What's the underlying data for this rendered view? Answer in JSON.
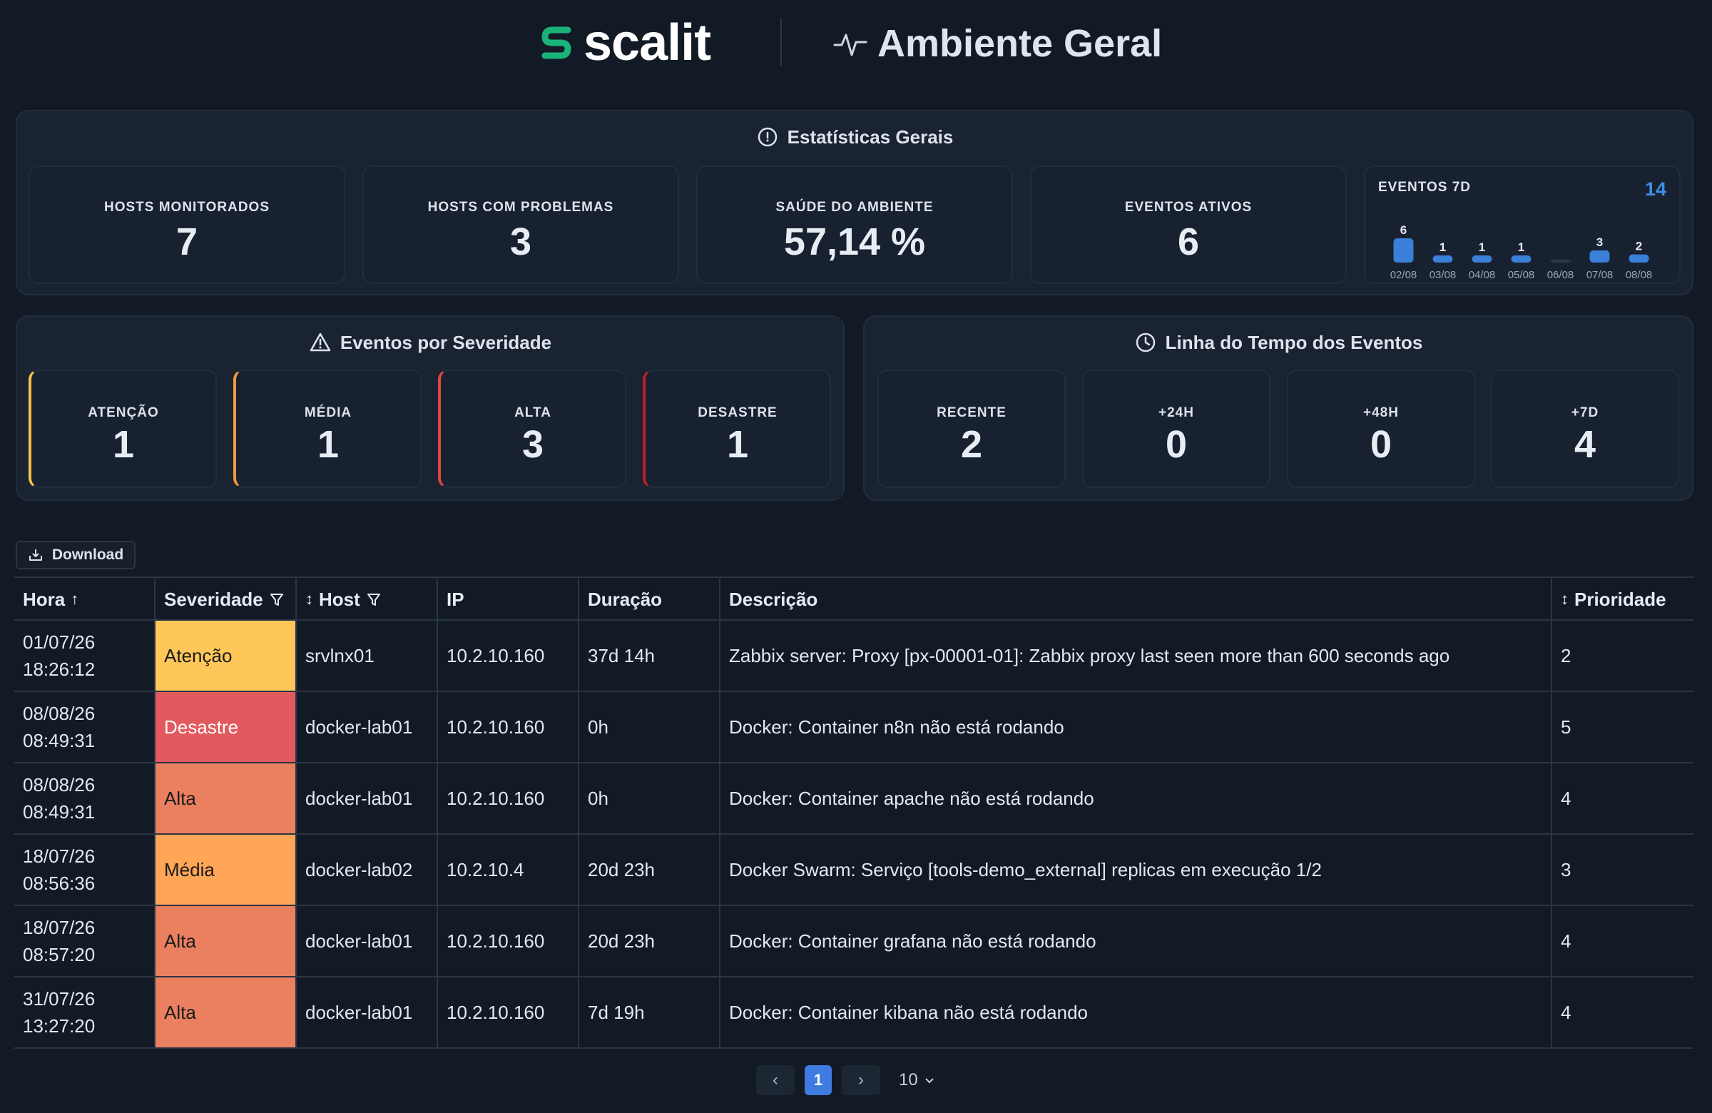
{
  "header": {
    "logo_text": "scalit",
    "title": "Ambiente Geral",
    "brand_color": "#19b37a"
  },
  "stats": {
    "title": "Estatísticas Gerais",
    "cards": [
      {
        "label": "HOSTS MONITORADOS",
        "value": "7"
      },
      {
        "label": "HOSTS COM PROBLEMAS",
        "value": "3"
      },
      {
        "label": "SAÚDE DO AMBIENTE",
        "value": "57,14 %"
      },
      {
        "label": "EVENTOS ATIVOS",
        "value": "6"
      }
    ],
    "events7d": {
      "label": "EVENTOS 7D",
      "total": "14"
    }
  },
  "chart_data": {
    "type": "bar",
    "categories": [
      "02/08",
      "03/08",
      "04/08",
      "05/08",
      "06/08",
      "07/08",
      "08/08"
    ],
    "values": [
      6,
      1,
      1,
      1,
      0,
      3,
      2
    ],
    "bar_color": "#3a7fd8"
  },
  "severity": {
    "title": "Eventos por Severidade",
    "cards": [
      {
        "label": "ATENÇÃO",
        "value": "1",
        "color": "#f5c24a"
      },
      {
        "label": "MÉDIA",
        "value": "1",
        "color": "#f49a3f"
      },
      {
        "label": "ALTA",
        "value": "3",
        "color": "#e0473f"
      },
      {
        "label": "DESASTRE",
        "value": "1",
        "color": "#b8222a"
      }
    ]
  },
  "timeline": {
    "title": "Linha do Tempo dos Eventos",
    "cards": [
      {
        "label": "RECENTE",
        "value": "2"
      },
      {
        "label": "+24H",
        "value": "0"
      },
      {
        "label": "+48H",
        "value": "0"
      },
      {
        "label": "+7D",
        "value": "4"
      }
    ]
  },
  "download_label": "Download",
  "table": {
    "columns": [
      "Hora",
      "Severidade",
      "Host",
      "IP",
      "Duração",
      "Descrição",
      "Prioridade"
    ],
    "rows": [
      {
        "date": "01/07/26",
        "time": "18:26:12",
        "severity": "Atenção",
        "host": "srvlnx01",
        "ip": "10.2.10.160",
        "duration": "37d 14h",
        "description": "Zabbix server: Proxy [px-00001-01]: Zabbix proxy last seen more than 600 seconds ago",
        "priority": "2"
      },
      {
        "date": "08/08/26",
        "time": "08:49:31",
        "severity": "Desastre",
        "host": "docker-lab01",
        "ip": "10.2.10.160",
        "duration": "0h",
        "description": "Docker: Container n8n não está rodando",
        "priority": "5"
      },
      {
        "date": "08/08/26",
        "time": "08:49:31",
        "severity": "Alta",
        "host": "docker-lab01",
        "ip": "10.2.10.160",
        "duration": "0h",
        "description": "Docker: Container apache não está rodando",
        "priority": "4"
      },
      {
        "date": "18/07/26",
        "time": "08:56:36",
        "severity": "Média",
        "host": "docker-lab02",
        "ip": "10.2.10.4",
        "duration": "20d 23h",
        "description": "Docker Swarm: Serviço [tools-demo_external] replicas em execução 1/2",
        "priority": "3"
      },
      {
        "date": "18/07/26",
        "time": "08:57:20",
        "severity": "Alta",
        "host": "docker-lab01",
        "ip": "10.2.10.160",
        "duration": "20d 23h",
        "description": "Docker: Container grafana não está rodando",
        "priority": "4"
      },
      {
        "date": "31/07/26",
        "time": "13:27:20",
        "severity": "Alta",
        "host": "docker-lab01",
        "ip": "10.2.10.160",
        "duration": "7d 19h",
        "description": "Docker: Container kibana não está rodando",
        "priority": "4"
      }
    ],
    "severity_colors": {
      "Atenção": "#ffc75a",
      "Média": "#ffa657",
      "Alta": "#ea8060",
      "Desastre": "#e25a5e"
    }
  },
  "pagination": {
    "current_page": "1",
    "page_size": "10"
  }
}
